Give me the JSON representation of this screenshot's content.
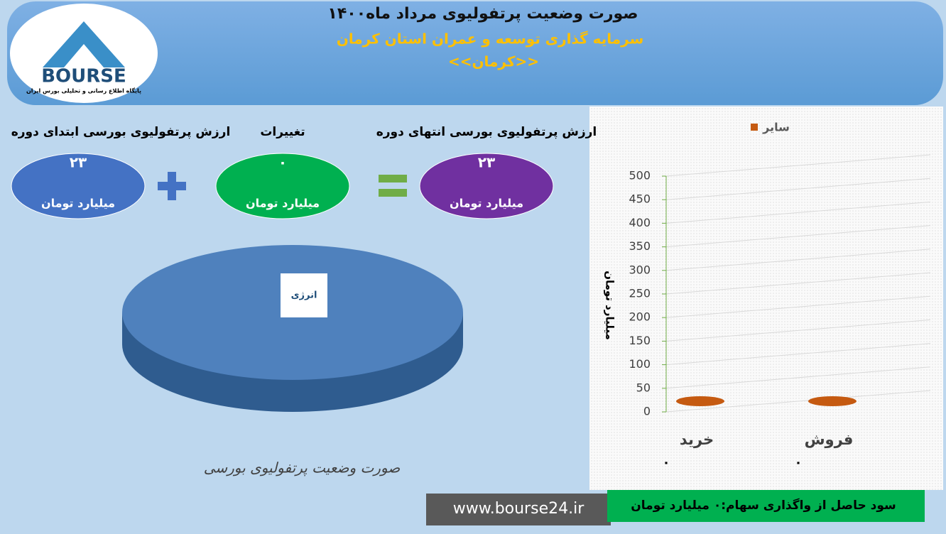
{
  "header": {
    "title": "صورت وضعیت پرتفولیوی مرداد ماه۱۴۰۰",
    "subtitle": "سرمایه گذاری توسعه و عمران استان کرمان",
    "symbol": "<<کرمان>>"
  },
  "logo": {
    "text": "BOURSE",
    "caption": "پایگاه اطلاع رسانی و تحلیلی بورس ایران"
  },
  "summary": [
    {
      "label": "ارزش پرتفولیوی بورسی ابتدای دوره",
      "value": "۲۳",
      "unit": "میلیارد تومان",
      "color": "#4472c4"
    },
    {
      "label": "تغییرات",
      "value": "۰",
      "unit": "میلیارد تومان",
      "color": "#00b050"
    },
    {
      "label": "ارزش پرتفولیوی بورسی انتهای دوره",
      "value": "۲۳",
      "unit": "میلیارد تومان",
      "color": "#7030a0"
    }
  ],
  "footer": {
    "website": "www.bourse24.ir",
    "profit": "سود حاصل از واگذاری سهام:۰ میلیارد تومان"
  },
  "chart_data": [
    {
      "type": "pie",
      "title": "صورت وضعیت پرتفولیوی بورسی",
      "categories": [
        "انرژی"
      ],
      "values": [
        100
      ],
      "colors": [
        "#4f81bd"
      ]
    },
    {
      "type": "bar",
      "categories": [
        "خرید",
        "فروش"
      ],
      "ylabel": "میلیارد تومان",
      "series": [
        {
          "name": "سایر",
          "color": "#c55a11",
          "values": [
            0,
            0
          ],
          "value_labels": [
            "۰",
            "۰"
          ]
        }
      ],
      "ylim": [
        0,
        500
      ],
      "yticks": [
        0,
        50,
        100,
        150,
        200,
        250,
        300,
        350,
        400,
        450,
        500
      ],
      "grid": true,
      "legend": "top"
    }
  ]
}
